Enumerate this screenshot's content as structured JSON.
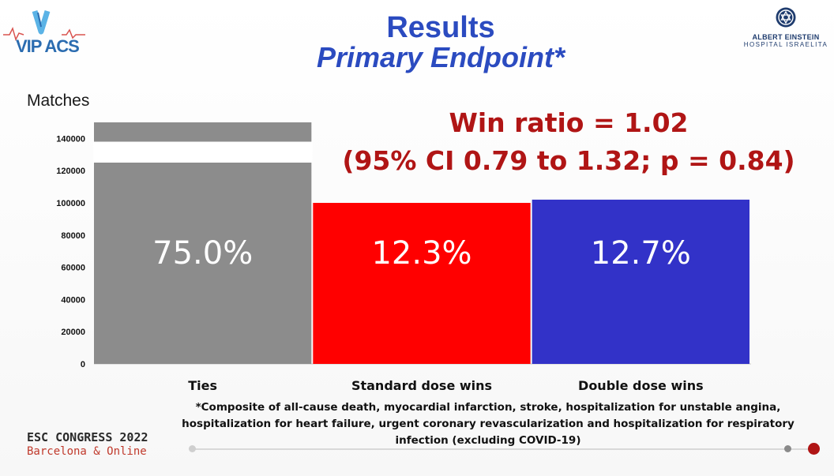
{
  "header": {
    "logo_left": "VIP ACS",
    "logo_right_name": "ALBERT EINSTEIN",
    "logo_right_sub": "HOSPITAL ISRAELITA",
    "title": "Results",
    "subtitle": "Primary Endpoint*"
  },
  "annotation": {
    "win_ratio": "Win ratio = 1.02",
    "ci": "(95% CI 0.79 to 1.32; p = 0.84)"
  },
  "chart_data": {
    "type": "bar",
    "ylabel": "Matches",
    "categories": [
      "Ties",
      "Standard dose wins",
      "Double dose wins"
    ],
    "values": [
      150000,
      100000,
      102000
    ],
    "data_labels": [
      "75.0%",
      "12.3%",
      "12.7%"
    ],
    "colors": [
      "#8c8c8c",
      "#ff0000",
      "#3232c8"
    ],
    "axis_break": [
      125000,
      138000
    ],
    "ylim": [
      0,
      150000
    ],
    "yticks": [
      0,
      20000,
      40000,
      60000,
      80000,
      100000,
      120000,
      140000
    ],
    "grid": false,
    "legend": "none"
  },
  "footnote": "*Composite of all-cause death, myocardial infarction, stroke, hospitalization for unstable angina, hospitalization for heart failure, urgent coronary revascularization and hospitalization for respiratory infection  (excluding COVID-19)",
  "footer": {
    "congress": "ESC CONGRESS 2022",
    "location": "Barcelona & Online"
  }
}
